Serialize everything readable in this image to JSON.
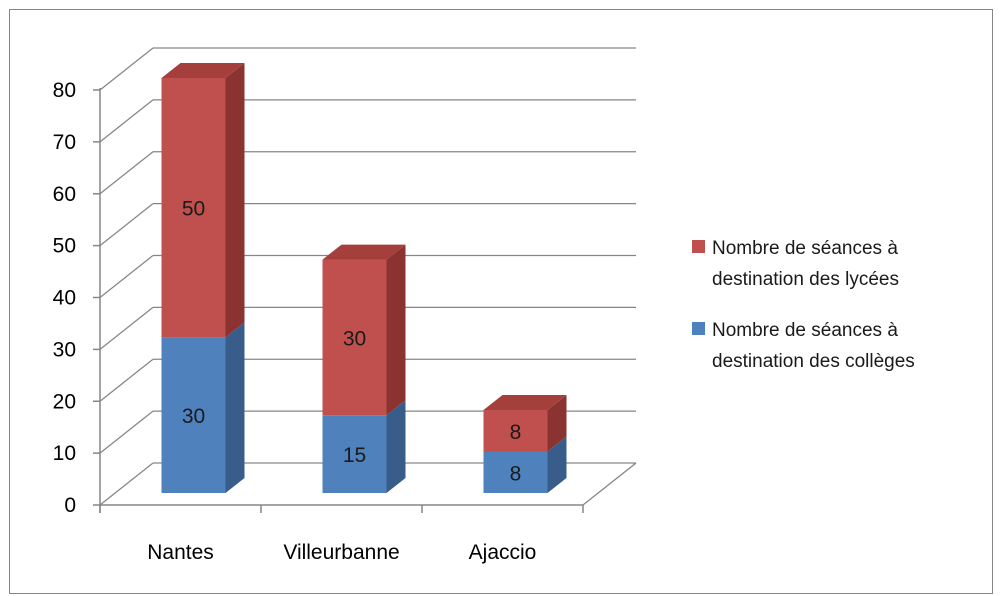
{
  "chart_data": {
    "type": "bar",
    "variant": "stacked-3d",
    "categories": [
      "Nantes",
      "Villeurbanne",
      "Ajaccio"
    ],
    "series": [
      {
        "name": "Nombre de séances à destination des collèges",
        "name_lines": [
          "Nombre de séances à",
          "destination des collèges"
        ],
        "values": [
          30,
          15,
          8
        ],
        "labels": [
          "30",
          "15",
          "8"
        ],
        "color": "#4F81BD",
        "side_color": "#385D8A",
        "top_color": "#6D93C6"
      },
      {
        "name": "Nombre de séances à destination des lycées",
        "name_lines": [
          "Nombre de séances à",
          "destination des lycées"
        ],
        "values": [
          50,
          30,
          8
        ],
        "labels": [
          "50",
          "30",
          "8"
        ],
        "color": "#C0504D",
        "side_color": "#8B3330",
        "top_color": "#A53F3C"
      }
    ],
    "y_ticks": [
      "0",
      "10",
      "20",
      "30",
      "40",
      "50",
      "60",
      "70",
      "80"
    ],
    "ylim": [
      0,
      80
    ],
    "grid": true,
    "legend_position": "right",
    "legend_order": [
      1,
      0
    ]
  }
}
